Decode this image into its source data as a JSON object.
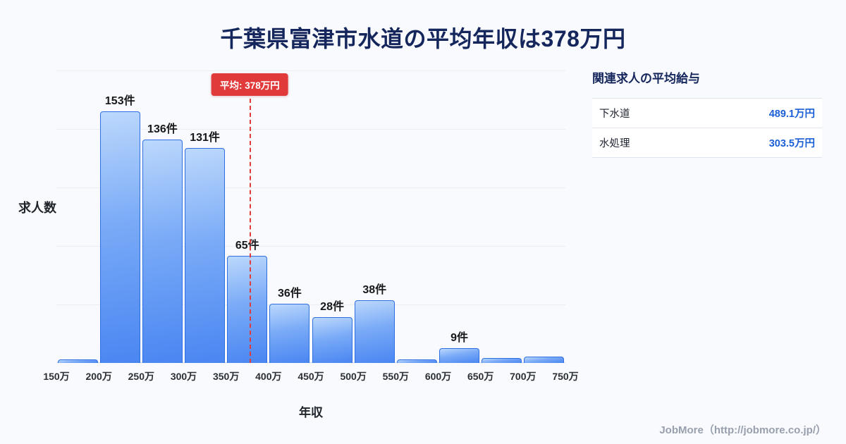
{
  "title": "千葉県富津市水道の平均年収は378万円",
  "chart_data": {
    "type": "bar",
    "title": "千葉県富津市水道の平均年収は378万円",
    "xlabel": "年収",
    "ylabel": "求人数",
    "x_tick_labels": [
      "150万",
      "200万",
      "250万",
      "300万",
      "350万",
      "400万",
      "450万",
      "500万",
      "550万",
      "600万",
      "650万",
      "700万",
      "750万"
    ],
    "bin_edges": [
      150,
      200,
      250,
      300,
      350,
      400,
      450,
      500,
      550,
      600,
      650,
      700,
      750
    ],
    "values": [
      2,
      153,
      136,
      131,
      65,
      36,
      28,
      38,
      2,
      9,
      3,
      4
    ],
    "bar_labels": [
      "",
      "153件",
      "136件",
      "131件",
      "65件",
      "36件",
      "28件",
      "38件",
      "",
      "9件",
      "",
      ""
    ],
    "ylim": [
      0,
      178
    ],
    "grid": true,
    "gridline_count": 5,
    "average_line": {
      "x_value": 378,
      "x_min": 150,
      "x_max": 750,
      "label": "平均: 378万円",
      "color": "#e03a3a"
    },
    "colors": {
      "bar_top": "#bcd8fc",
      "bar_bottom": "#4a86f2",
      "bar_border": "#2f6fe4",
      "title": "#14265c"
    }
  },
  "panel": {
    "heading": "関連求人の平均給与",
    "rows": [
      {
        "label": "下水道",
        "value": "489.1万円"
      },
      {
        "label": "水処理",
        "value": "303.5万円"
      }
    ]
  },
  "footer": {
    "text": "JobMore（http://jobmore.co.jp/）"
  }
}
